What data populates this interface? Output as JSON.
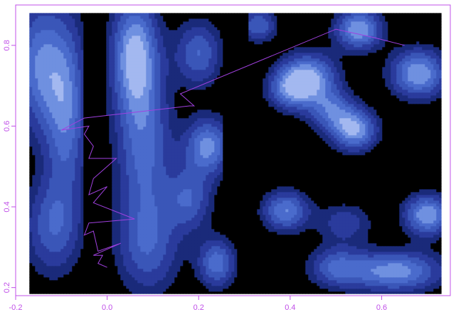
{
  "chart_data": {
    "type": "heatmap",
    "title": "",
    "xlabel": "",
    "ylabel": "",
    "xlim": [
      -0.2,
      0.75
    ],
    "ylim": [
      0.18,
      0.9
    ],
    "x_ticks": [
      -0.2,
      0.0,
      0.2,
      0.4,
      0.6
    ],
    "x_tick_labels": [
      "-0.2",
      "0.0",
      "0.2",
      "0.4",
      "0.6"
    ],
    "y_ticks": [
      0.2,
      0.4,
      0.6,
      0.8
    ],
    "y_tick_labels": [
      "0.2",
      "0.4",
      "0.6",
      "0.8"
    ],
    "grid": false,
    "axis_color": "#c050e8",
    "heatmap_x_range": [
      -0.17,
      0.73
    ],
    "heatmap_y_range": [
      0.185,
      0.88
    ],
    "color_levels": [
      "#000000",
      "#1a2a7a",
      "#2a3b9c",
      "#3a56b8",
      "#4a6bcc",
      "#6f90e0",
      "#a3b8f0"
    ],
    "path": {
      "color": "#a040e0",
      "points": [
        [
          0.0,
          0.25
        ],
        [
          -0.02,
          0.26
        ],
        [
          -0.01,
          0.28
        ],
        [
          -0.03,
          0.28
        ],
        [
          0.03,
          0.31
        ],
        [
          -0.02,
          0.29
        ],
        [
          -0.03,
          0.34
        ],
        [
          -0.05,
          0.33
        ],
        [
          -0.04,
          0.36
        ],
        [
          0.06,
          0.37
        ],
        [
          -0.03,
          0.41
        ],
        [
          0.0,
          0.45
        ],
        [
          -0.04,
          0.43
        ],
        [
          -0.03,
          0.47
        ],
        [
          0.0,
          0.5
        ],
        [
          0.02,
          0.52
        ],
        [
          -0.04,
          0.52
        ],
        [
          -0.03,
          0.55
        ],
        [
          -0.05,
          0.58
        ],
        [
          -0.04,
          0.6
        ],
        [
          -0.1,
          0.59
        ],
        [
          -0.05,
          0.62
        ],
        [
          0.18,
          0.65
        ],
        [
          0.19,
          0.65
        ],
        [
          0.16,
          0.68
        ],
        [
          0.5,
          0.84
        ],
        [
          0.58,
          0.82
        ],
        [
          0.65,
          0.8
        ]
      ]
    }
  }
}
